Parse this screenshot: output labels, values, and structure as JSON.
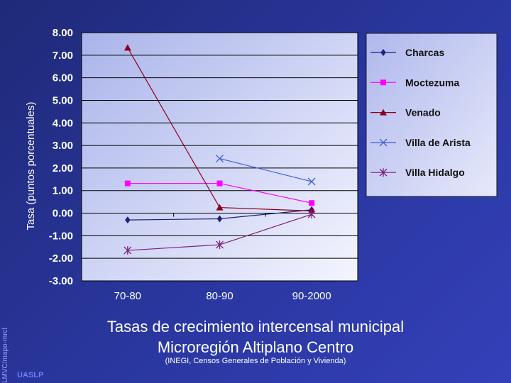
{
  "chart_data": {
    "type": "line",
    "categories": [
      "70-80",
      "80-90",
      "90-2000"
    ],
    "ylabel": "Tasa (puntos porcentuales)",
    "ylim": [
      -3,
      8
    ],
    "yticks": [
      "8.00",
      "7.00",
      "6.00",
      "5.00",
      "4.00",
      "3.00",
      "2.00",
      "1.00",
      "0.00",
      "-1.00",
      "-2.00",
      "-3.00"
    ],
    "grid": true,
    "legend_position": "right",
    "series": [
      {
        "name": "Charcas",
        "values": [
          -0.3,
          -0.25,
          0.15
        ],
        "color": "#1a237e",
        "marker": "diamond"
      },
      {
        "name": "Moctezuma",
        "values": [
          1.32,
          1.32,
          0.45
        ],
        "color": "#ff00ff",
        "marker": "square"
      },
      {
        "name": "Venado",
        "values": [
          7.33,
          0.25,
          0.1
        ],
        "color": "#8b0020",
        "marker": "triangle"
      },
      {
        "name": "Villa de Arista",
        "values": [
          null,
          2.42,
          1.4
        ],
        "color": "#3f5fd8",
        "marker": "x"
      },
      {
        "name": "Villa Hidalgo",
        "values": [
          -1.65,
          -1.4,
          -0.05
        ],
        "color": "#7a1f7a",
        "marker": "star"
      }
    ]
  },
  "title_line1": "Tasas de crecimiento intercensal municipal",
  "title_line2": "Microregión Altiplano Centro",
  "source": "(INEGI, Censos Generales de Población y Vivienda)",
  "credit": "LMVC/mapo-mrcl",
  "org": "UASLP"
}
